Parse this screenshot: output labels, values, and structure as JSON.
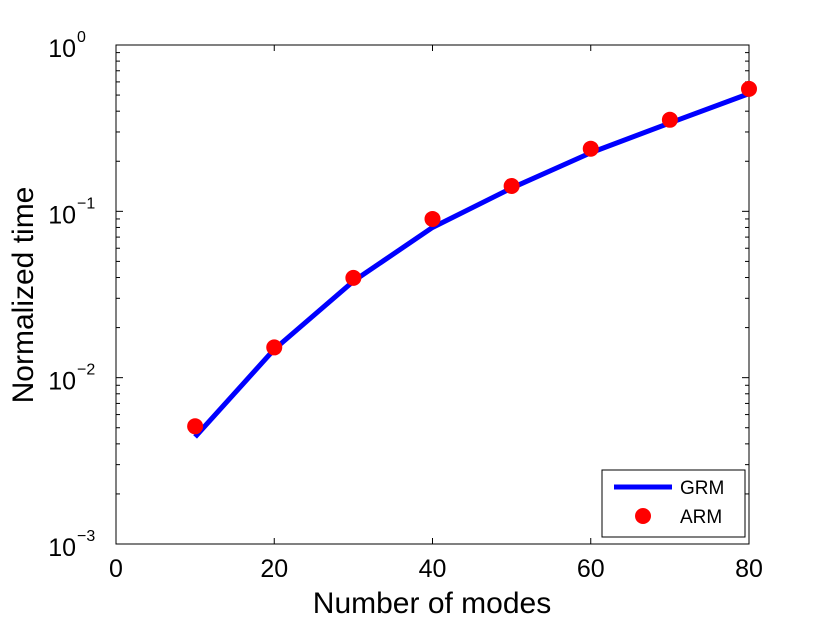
{
  "chart_data": {
    "type": "line",
    "xlabel": "Number of modes",
    "ylabel": "Normalized time",
    "xlim": [
      0,
      80
    ],
    "ylim": [
      0.001,
      1
    ],
    "yscale": "log",
    "xticks": [
      "0",
      "20",
      "40",
      "60",
      "80"
    ],
    "yticks": [
      {
        "base": "10",
        "exp": "0"
      },
      {
        "base": "10",
        "exp": "−1"
      },
      {
        "base": "10",
        "exp": "−2"
      },
      {
        "base": "10",
        "exp": "−3"
      }
    ],
    "legend_position": "bottom-right",
    "grid": false,
    "series": [
      {
        "name": "GRM",
        "style": "line",
        "color": "#0000ff",
        "x": [
          10,
          20,
          30,
          40,
          50,
          60,
          70,
          80
        ],
        "y": [
          0.0044,
          0.0148,
          0.038,
          0.08,
          0.138,
          0.225,
          0.34,
          0.51
        ]
      },
      {
        "name": "ARM",
        "style": "markers",
        "color": "#ff0000",
        "x": [
          10,
          20,
          30,
          40,
          50,
          60,
          70,
          80
        ],
        "y": [
          0.0051,
          0.0152,
          0.0398,
          0.09,
          0.142,
          0.238,
          0.355,
          0.545
        ]
      }
    ]
  }
}
